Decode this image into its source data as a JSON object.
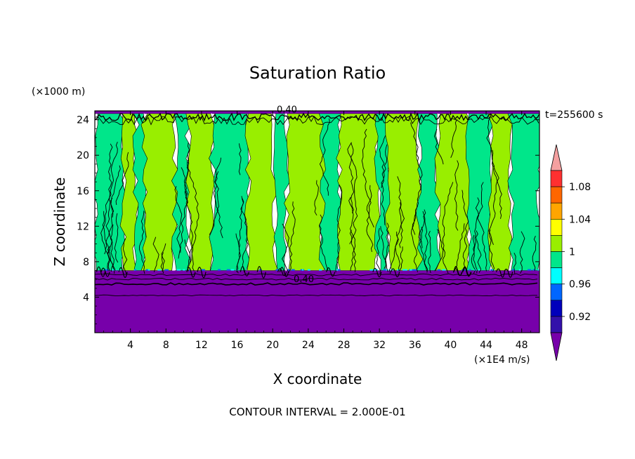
{
  "chart_data": {
    "type": "heatmap",
    "title": "Saturation Ratio",
    "xlabel": "X coordinate",
    "ylabel": "Z coordinate",
    "x_units": "(×1E4 m/s)",
    "y_units": "(×1000 m)",
    "time_label": "t=255600 s",
    "footer": "CONTOUR INTERVAL = 2.000E-01",
    "xlim": [
      0,
      50
    ],
    "ylim": [
      0,
      25
    ],
    "x_ticks": [
      "4",
      "8",
      "12",
      "16",
      "20",
      "24",
      "28",
      "32",
      "36",
      "40",
      "44",
      "48"
    ],
    "x_tick_values": [
      4,
      8,
      12,
      16,
      20,
      24,
      28,
      32,
      36,
      40,
      44,
      48
    ],
    "y_ticks": [
      "4",
      "8",
      "12",
      "16",
      "20",
      "24"
    ],
    "y_tick_values": [
      4,
      8,
      12,
      16,
      20,
      24
    ],
    "contour_labels": [
      {
        "text": "0.40",
        "x": 23.5,
        "y": 5.7
      },
      {
        "text": "0.40",
        "x": 21.6,
        "y": 24.8
      }
    ],
    "layers": [
      {
        "name": "lower dry layer",
        "z_bottom": 0,
        "z_top": 7.0,
        "value": "< 0.9"
      },
      {
        "name": "top dry layer",
        "z_bottom": 24.7,
        "z_top": 25,
        "value": "< 0.9"
      }
    ],
    "column_bands": [
      {
        "x0": 0.0,
        "x1": 3.2,
        "value": 0.99
      },
      {
        "x0": 3.2,
        "x1": 4.6,
        "value": 1.0
      },
      {
        "x0": 4.6,
        "x1": 5.6,
        "value": 0.99
      },
      {
        "x0": 5.6,
        "x1": 9.0,
        "value": 1.01
      },
      {
        "x0": 9.0,
        "x1": 10.5,
        "value": 0.99
      },
      {
        "x0": 10.5,
        "x1": 13.2,
        "value": 1.01
      },
      {
        "x0": 13.2,
        "x1": 17.2,
        "value": 0.99
      },
      {
        "x0": 17.2,
        "x1": 20.2,
        "value": 1.01
      },
      {
        "x0": 20.2,
        "x1": 21.6,
        "value": 0.99
      },
      {
        "x0": 21.6,
        "x1": 25.6,
        "value": 1.01
      },
      {
        "x0": 25.6,
        "x1": 27.5,
        "value": 0.99
      },
      {
        "x0": 27.5,
        "x1": 31.8,
        "value": 1.01
      },
      {
        "x0": 31.8,
        "x1": 33.0,
        "value": 0.99
      },
      {
        "x0": 33.0,
        "x1": 36.5,
        "value": 1.01
      },
      {
        "x0": 36.5,
        "x1": 38.6,
        "value": 0.99
      },
      {
        "x0": 38.6,
        "x1": 42.0,
        "value": 1.01
      },
      {
        "x0": 42.0,
        "x1": 44.5,
        "value": 0.99
      },
      {
        "x0": 44.5,
        "x1": 46.8,
        "value": 1.01
      },
      {
        "x0": 46.8,
        "x1": 50.0,
        "value": 0.99
      }
    ],
    "colorbar": {
      "labels": [
        "1.08",
        "1.04",
        "1",
        "0.96",
        "0.92"
      ],
      "label_values": [
        1.08,
        1.04,
        1.0,
        0.96,
        0.92
      ],
      "bins": [
        {
          "from": 1.1,
          "to": 9.99,
          "color": "#f4a0a0"
        },
        {
          "from": 1.08,
          "to": 1.1,
          "color": "#ff3030"
        },
        {
          "from": 1.06,
          "to": 1.08,
          "color": "#ff6600"
        },
        {
          "from": 1.04,
          "to": 1.06,
          "color": "#ffa500"
        },
        {
          "from": 1.02,
          "to": 1.04,
          "color": "#ffff00"
        },
        {
          "from": 1.0,
          "to": 1.02,
          "color": "#99ee00"
        },
        {
          "from": 0.98,
          "to": 1.0,
          "color": "#00e68a"
        },
        {
          "from": 0.96,
          "to": 0.98,
          "color": "#00ffff"
        },
        {
          "from": 0.94,
          "to": 0.96,
          "color": "#0066ff"
        },
        {
          "from": 0.92,
          "to": 0.94,
          "color": "#0000bb"
        },
        {
          "from": 0.9,
          "to": 0.92,
          "color": "#3311aa"
        },
        {
          "from": 0.0,
          "to": 0.9,
          "color": "#7700aa"
        }
      ]
    }
  }
}
